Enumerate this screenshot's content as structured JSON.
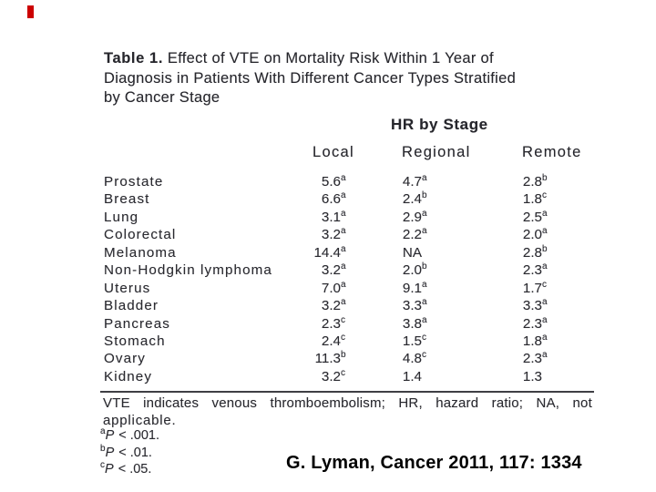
{
  "slide": {
    "background_color": "#ffffff",
    "accent_mark_color": "#cc0000"
  },
  "table": {
    "title_label": "Table 1.",
    "title_line1_rest": " Effect of VTE on Mortality Risk Within 1 Year of",
    "title_line2": "Diagnosis in Patients With Different Cancer Types Stratified",
    "title_line3": "by Cancer Stage",
    "spanner": "HR by Stage",
    "columns": [
      "Local",
      "Regional",
      "Remote"
    ],
    "rows": [
      {
        "name": "Prostate",
        "local": "5.6^a",
        "regional": "4.7^a",
        "remote": "2.8^b"
      },
      {
        "name": "Breast",
        "local": "6.6^a",
        "regional": "2.4^b",
        "remote": "1.8^c"
      },
      {
        "name": "Lung",
        "local": "3.1^a",
        "regional": "2.9^a",
        "remote": "2.5^a"
      },
      {
        "name": "Colorectal",
        "local": "3.2^a",
        "regional": "2.2^a",
        "remote": "2.0^a"
      },
      {
        "name": "Melanoma",
        "local": "14.4^a",
        "regional": "NA",
        "remote": "2.8^b"
      },
      {
        "name": "Non-Hodgkin lymphoma",
        "local": "3.2^a",
        "regional": "2.0^b",
        "remote": "2.3^a"
      },
      {
        "name": "Uterus",
        "local": "7.0^a",
        "regional": "9.1^a",
        "remote": "1.7^c"
      },
      {
        "name": "Bladder",
        "local": "3.2^a",
        "regional": "3.3^a",
        "remote": "3.3^a"
      },
      {
        "name": "Pancreas",
        "local": "2.3^c",
        "regional": "3.8^a",
        "remote": "2.3^a"
      },
      {
        "name": "Stomach",
        "local": "2.4^c",
        "regional": "1.5^c",
        "remote": "1.8^a"
      },
      {
        "name": "Ovary",
        "local": "11.3^b",
        "regional": "4.8^c",
        "remote": "2.3^a"
      },
      {
        "name": "Kidney",
        "local": "3.2^c",
        "regional": "1.4",
        "remote": "1.3"
      }
    ],
    "footnote_line1_words": [
      "VTE",
      "indicates",
      "venous",
      "thromboembolism;",
      "HR,",
      "hazard",
      "ratio;",
      "NA,",
      "not"
    ],
    "footnote_line2": "applicable.",
    "pnotes": [
      {
        "sup": "a",
        "var": "P",
        "rest": " < .001."
      },
      {
        "sup": "b",
        "var": "P",
        "rest": " < .01."
      },
      {
        "sup": "c",
        "var": "P",
        "rest": " < .05."
      }
    ]
  },
  "citation": "G. Lyman, Cancer 2011, 117: 1334"
}
